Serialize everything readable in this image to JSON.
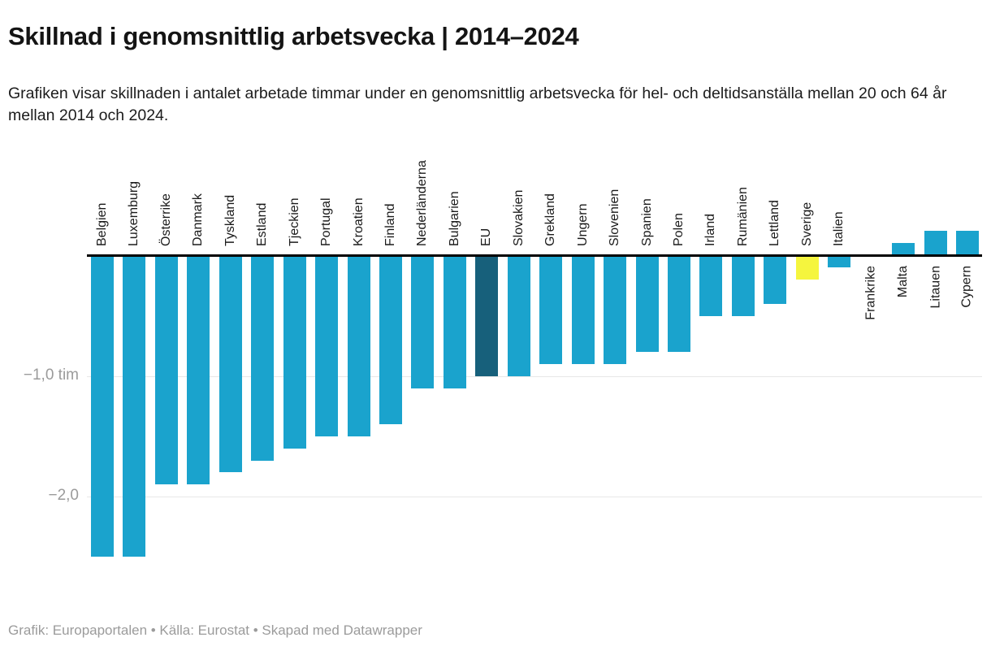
{
  "header": {
    "title": "Skillnad i genomsnittlig arbetsvecka | 2014–2024",
    "description": "Grafiken visar skillnaden i antalet arbetade timmar under en genomsnittlig arbetsvecka för hel- och deltidsanställa mellan 20 och 64 år mellan 2014 och 2024."
  },
  "footer": {
    "text": "Grafik: Europaportalen • Källa: Eurostat • Skapad med Datawrapper"
  },
  "chart_data": {
    "type": "bar",
    "title": "Skillnad i genomsnittlig arbetsvecka | 2014–2024",
    "xlabel": "",
    "ylabel": "",
    "unit": "tim",
    "grid": "horizontal",
    "legend": "none",
    "baseline": 0,
    "ylim": [
      -2.6,
      0.3
    ],
    "categories": [
      "Belgien",
      "Luxemburg",
      "Österrike",
      "Danmark",
      "Tyskland",
      "Estland",
      "Tjeckien",
      "Portugal",
      "Kroatien",
      "Finland",
      "Nederländerna",
      "Bulgarien",
      "EU",
      "Slovakien",
      "Grekland",
      "Ungern",
      "Slovenien",
      "Spanien",
      "Polen",
      "Irland",
      "Rumänien",
      "Lettland",
      "Sverige",
      "Italien",
      "Frankrike",
      "Malta",
      "Litauen",
      "Cypern"
    ],
    "values": [
      -2.5,
      -2.5,
      -1.9,
      -1.9,
      -1.8,
      -1.7,
      -1.6,
      -1.5,
      -1.5,
      -1.4,
      -1.1,
      -1.1,
      -1.0,
      -1.0,
      -0.9,
      -0.9,
      -0.9,
      -0.8,
      -0.8,
      -0.5,
      -0.5,
      -0.4,
      -0.2,
      -0.1,
      0.0,
      0.1,
      0.2,
      0.2
    ],
    "yticks": [
      {
        "value": -1.0,
        "label": "−1,0 tim"
      },
      {
        "value": -2.0,
        "label": "−2,0"
      }
    ],
    "default_color": "#1aa3cd",
    "highlights": {
      "EU": "#17607b",
      "Sverige": "#f5f53e"
    },
    "colors": {
      "axis": "#000000",
      "grid": "#e7e7e7",
      "tick_text": "#9b9b9b"
    }
  }
}
